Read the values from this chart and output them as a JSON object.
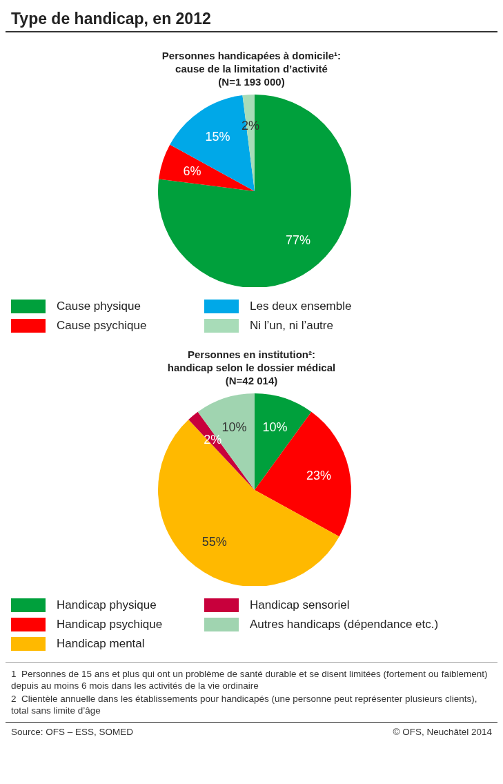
{
  "chart_data": [
    {
      "type": "pie",
      "title": "Type de handicap, en 2012",
      "subtitle": "Personnes handicapées à domicile¹:\ncause de la limitation d’activité\n(N=1 193 000)",
      "categories": [
        "Cause physique",
        "Cause psychique",
        "Les deux ensemble",
        "Ni l’un, ni l’autre"
      ],
      "values": [
        77,
        6,
        15,
        2
      ],
      "colors": [
        "#00a03c",
        "#ff0000",
        "#00a8e8",
        "#a8dcb8"
      ],
      "value_labels": [
        "77%",
        "6%",
        "15%",
        "2%"
      ],
      "legend": "bottom"
    },
    {
      "type": "pie",
      "title": "Personnes en institution²:\nhandicap selon le dossier médical\n(N=42 014)",
      "categories": [
        "Handicap physique",
        "Handicap psychique",
        "Handicap mental",
        "Handicap sensoriel",
        "Autres handicaps (dépendance etc.)"
      ],
      "values": [
        10,
        23,
        55,
        2,
        10
      ],
      "colors": [
        "#00a03c",
        "#ff0000",
        "#ffb900",
        "#c8003c",
        "#a0d4b0"
      ],
      "value_labels": [
        "10%",
        "23%",
        "55%",
        "2%",
        "10%"
      ],
      "legend": "bottom",
      "annotations": [
        "1  Personnes de 15 ans et plus qui ont un problème de santé durable et se disent limitées (fortement ou faiblement) depuis au moins 6 mois dans les activités de la vie ordinaire",
        "2  Clientèle annuelle dans les établissements pour handicapés (une personne peut représenter plusieurs clients), total sans limite d’âge",
        "Source: OFS – ESS, SOMED",
        "© OFS, Neuchâtel 2014"
      ]
    }
  ]
}
